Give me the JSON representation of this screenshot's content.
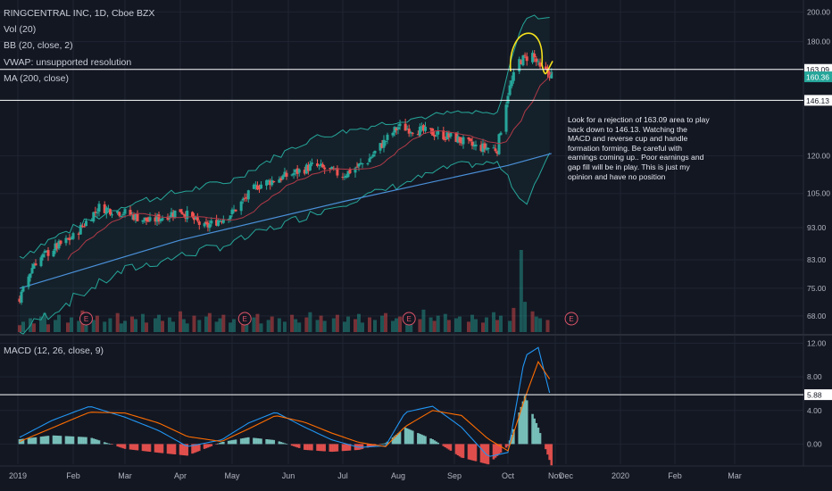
{
  "legend": {
    "symbol": "RINGCENTRAL INC, 1D, Cboe BZX",
    "vol": "Vol (20)",
    "bb": "BB (20, close, 2)",
    "vwap": "VWAP: unsupported resolution",
    "ma": "MA (200, close)",
    "macd": "MACD (12, 26, close, 9)"
  },
  "annotation": "Look for a rejection of 163.09 area to play back down to 146.13.  Watching the MACD and reverse cup and handle formation forming.  Be careful with earnings coming up.. Poor earnings and gap fill will be in play.  This is just my opinion and have no position",
  "colors": {
    "background": "#131722",
    "up": "#26a69a",
    "down": "#ef5350",
    "bb": "#26a69a",
    "ma200": "#4a90d9",
    "ma_short": "#b03a48",
    "macd_line": "#2196f3",
    "signal_line": "#ff6d00",
    "cup": "#f5e11d",
    "level_line": "#ffffff",
    "last_price_tag": "#26a69a",
    "earnings": "#e0556a"
  },
  "chart_data": [
    {
      "type": "candlestick",
      "title": "RINGCENTRAL INC, 1D, Cboe BZX",
      "y_scale": "log",
      "ylim": [
        64,
        206
      ],
      "y_ticks": [
        "200.00",
        "180.00",
        "163.09",
        "160.36",
        "146.13",
        "120.00",
        "105.00",
        "93.00",
        "83.00",
        "75.00",
        "68.00"
      ],
      "x_ticks": [
        "2019",
        "Feb",
        "Mar",
        "Apr",
        "May",
        "Jun",
        "Jul",
        "Aug",
        "Sep",
        "Oct",
        "Nov",
        "Dec",
        "2020",
        "Feb",
        "Mar"
      ],
      "horizontal_levels": [
        {
          "label": "163.09",
          "value": 163.09
        },
        {
          "label": "146.13",
          "value": 146.13
        }
      ],
      "last_price": {
        "label": "160.36",
        "value": 160.36
      },
      "earnings_markers": [
        "E",
        "E",
        "E",
        "E"
      ],
      "close_series": {
        "dates": [
          "2019-01-02",
          "2019-01-10",
          "2019-01-20",
          "2019-02-01",
          "2019-02-15",
          "2019-03-01",
          "2019-03-15",
          "2019-04-01",
          "2019-04-15",
          "2019-05-01",
          "2019-05-15",
          "2019-06-01",
          "2019-06-15",
          "2019-07-01",
          "2019-07-15",
          "2019-08-01",
          "2019-08-15",
          "2019-09-01",
          "2019-09-12",
          "2019-09-25",
          "2019-10-01",
          "2019-10-07",
          "2019-10-14",
          "2019-10-18",
          "2019-10-24"
        ],
        "close": [
          72,
          82,
          86,
          90,
          100,
          98,
          95,
          99,
          93,
          98,
          108,
          112,
          116,
          112,
          118,
          133,
          131,
          128,
          124,
          123,
          150,
          168,
          172,
          163,
          160.36
        ]
      },
      "ma200": {
        "dates": [
          "2019-01-02",
          "2019-04-01",
          "2019-07-01",
          "2019-10-01",
          "2019-10-24"
        ],
        "values": [
          75,
          89,
          102,
          116,
          121
        ]
      },
      "bb_upper": {
        "dates": [
          "2019-01-02",
          "2019-03-01",
          "2019-05-01",
          "2019-06-15",
          "2019-08-01",
          "2019-09-01",
          "2019-09-25",
          "2019-10-10",
          "2019-10-24"
        ],
        "values": [
          84,
          101,
          110,
          128,
          136,
          140,
          139,
          196,
          197
        ]
      },
      "bb_lower": {
        "dates": [
          "2019-01-02",
          "2019-03-01",
          "2019-05-01",
          "2019-06-15",
          "2019-08-01",
          "2019-09-01",
          "2019-09-25",
          "2019-10-10",
          "2019-10-24"
        ],
        "values": [
          64,
          80,
          88,
          98,
          108,
          116,
          117,
          101,
          122
        ]
      }
    },
    {
      "type": "bar",
      "title": "Vol (20)",
      "series": [
        {
          "values": [
            8,
            12,
            16,
            10,
            18,
            22,
            9,
            14,
            20,
            11,
            17,
            13,
            25,
            9,
            14,
            19,
            12,
            16,
            22,
            10,
            13,
            18,
            15,
            21,
            11,
            16,
            20,
            13,
            17,
            12,
            24,
            15,
            10,
            19,
            14,
            18,
            22,
            12,
            16,
            20,
            11,
            15,
            19,
            13,
            17,
            21,
            10,
            14,
            18,
            16,
            12,
            20,
            15,
            11,
            17,
            23,
            14,
            19,
            13,
            16,
            20,
            12,
            18,
            15,
            21,
            11,
            17,
            14,
            19,
            22,
            13,
            16,
            18,
            12,
            20,
            15,
            26,
            17,
            13,
            19,
            21,
            14,
            16,
            18,
            12,
            20,
            15,
            11,
            17,
            23,
            14,
            19,
            13,
            28,
            95,
            35,
            24,
            18,
            16,
            14
          ]
        }
      ]
    },
    {
      "type": "line",
      "title": "MACD (12, 26, close, 9)",
      "ylim": [
        -2.4,
        12.8
      ],
      "y_ticks": [
        "12.00",
        "8.00",
        "5.88",
        "4.00",
        "0.00"
      ],
      "horizontal_levels": [
        {
          "label": "5.88",
          "value": 5.88
        }
      ],
      "dates": [
        "2019-01-02",
        "2019-01-20",
        "2019-02-10",
        "2019-03-01",
        "2019-03-20",
        "2019-04-05",
        "2019-04-25",
        "2019-05-10",
        "2019-05-25",
        "2019-06-10",
        "2019-06-25",
        "2019-07-10",
        "2019-07-25",
        "2019-08-05",
        "2019-08-20",
        "2019-09-05",
        "2019-09-20",
        "2019-10-01",
        "2019-10-10",
        "2019-10-17",
        "2019-10-24"
      ],
      "series": [
        {
          "name": "MACD",
          "values": [
            0.8,
            2.8,
            4.5,
            3.2,
            1.6,
            -0.3,
            0.5,
            2.5,
            3.8,
            2.0,
            0.5,
            -0.4,
            -0.2,
            3.8,
            4.5,
            2.0,
            -1.5,
            -1.0,
            10.5,
            11.5,
            5.2
          ]
        },
        {
          "name": "Signal",
          "values": [
            0.3,
            1.9,
            3.8,
            3.7,
            2.5,
            0.9,
            0.3,
            1.8,
            3.4,
            2.6,
            1.3,
            0.2,
            -0.3,
            2.1,
            4.0,
            3.4,
            0.6,
            -0.8,
            5.5,
            9.8,
            7.4
          ]
        }
      ]
    }
  ]
}
